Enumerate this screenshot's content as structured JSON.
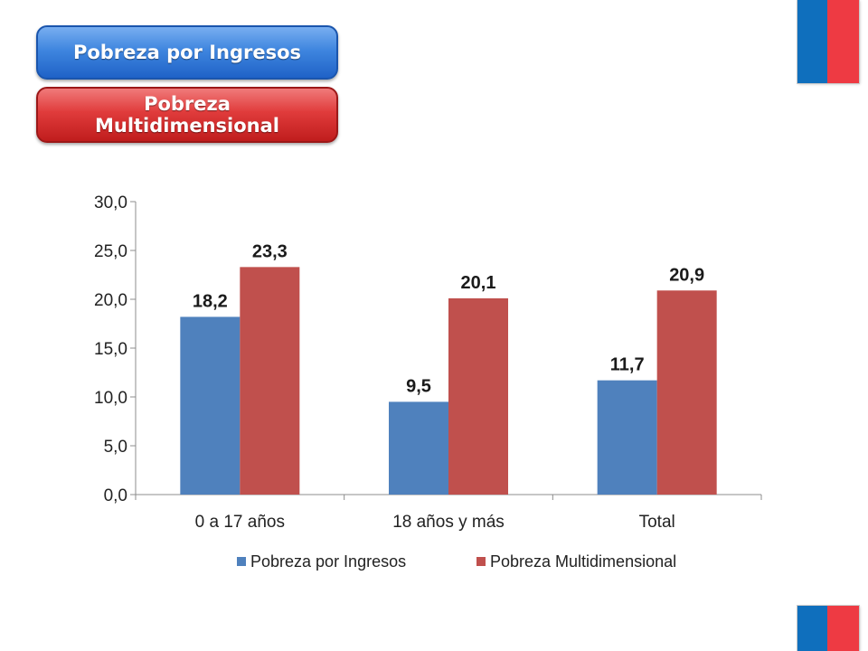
{
  "buttons": {
    "ingresos_label": "Pobreza por Ingresos",
    "multidimensional_label": "Pobreza Multidimensional"
  },
  "chart_data": {
    "type": "bar",
    "categories": [
      "0 a 17 años",
      "18 años y más",
      "Total"
    ],
    "series": [
      {
        "name": "Pobreza por Ingresos",
        "values": [
          18.2,
          9.5,
          11.7
        ],
        "color": "#4f81bd"
      },
      {
        "name": "Pobreza Multidimensional",
        "values": [
          23.3,
          20.1,
          20.9
        ],
        "color": "#c0504d"
      }
    ],
    "data_labels": [
      [
        "18,2",
        "9,5",
        "11,7"
      ],
      [
        "23,3",
        "20,1",
        "20,9"
      ]
    ],
    "yticks": [
      "0,0",
      "5,0",
      "10,0",
      "15,0",
      "20,0",
      "25,0",
      "30,0"
    ],
    "ylim": [
      0,
      30
    ],
    "ytick_step": 5,
    "grid": false,
    "legend_position": "bottom"
  },
  "colors": {
    "flag_blue": "#0f6fbd",
    "flag_red": "#ee3a43"
  }
}
